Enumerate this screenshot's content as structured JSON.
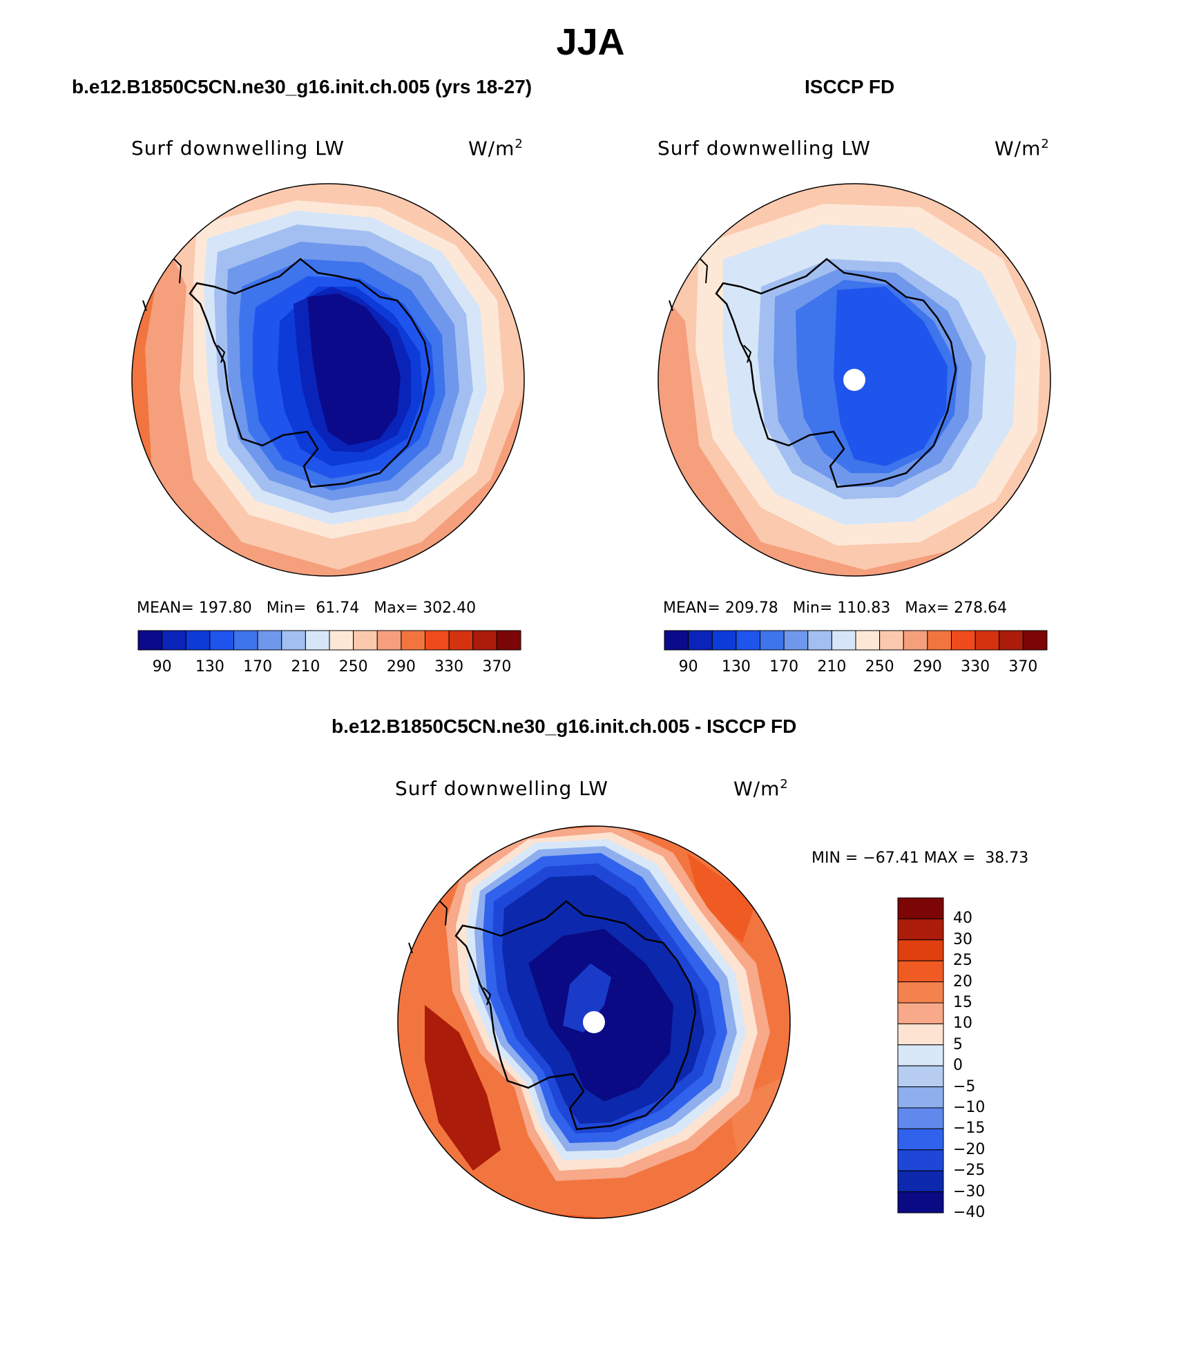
{
  "figure": {
    "title": "JJA",
    "panels": [
      {
        "title": "b.e12.B1850C5CN.ne30_g16.init.ch.005 (yrs 18-27)",
        "variable": "Surf downwelling LW",
        "units_prefix": "W/m",
        "units_exp": "2",
        "stats": {
          "mean": "197.80",
          "min": "61.74",
          "max": "302.40"
        }
      },
      {
        "title": "ISCCP FD",
        "variable": "Surf downwelling LW",
        "units_prefix": "W/m",
        "units_exp": "2",
        "stats": {
          "mean": "209.78",
          "min": "110.83",
          "max": "278.64"
        }
      },
      {
        "title": "b.e12.B1850C5CN.ne30_g16.init.ch.005 - ISCCP FD",
        "variable": "Surf downwelling LW",
        "units_prefix": "W/m",
        "units_exp": "2",
        "stats": {
          "min": "−67.41",
          "max": "38.73"
        }
      }
    ],
    "stat_labels": {
      "mean": "MEAN=",
      "min": "Min=",
      "max": "Max=",
      "min_upper": "MIN =",
      "max_upper": "MAX ="
    },
    "abs_colorbar": {
      "colors": [
        "#0b0a8a",
        "#0a23b8",
        "#0d3bd8",
        "#1f55ec",
        "#3e74ec",
        "#6f98ec",
        "#a3bff1",
        "#d6e6f8",
        "#fde8d8",
        "#fbc9ae",
        "#f59f7d",
        "#f2753f",
        "#ef4b1c",
        "#d53310",
        "#ab1c0a",
        "#7c0606"
      ],
      "labels": [
        "90",
        "130",
        "170",
        "210",
        "250",
        "290",
        "330",
        "370"
      ]
    },
    "diff_colorbar": {
      "colors": [
        "#7c0606",
        "#ab1c0a",
        "#e0400f",
        "#f05a23",
        "#f4824f",
        "#f7a98a",
        "#fde3d2",
        "#d8e8f8",
        "#b6ccf1",
        "#8eaeee",
        "#5f89ec",
        "#3062ec",
        "#1e47d8",
        "#0c28ad",
        "#0a0a85"
      ],
      "labels": [
        "40",
        "30",
        "25",
        "20",
        "15",
        "10",
        "5",
        "0",
        "−5",
        "−10",
        "−15",
        "−20",
        "−25",
        "−30",
        "−40"
      ]
    }
  }
}
